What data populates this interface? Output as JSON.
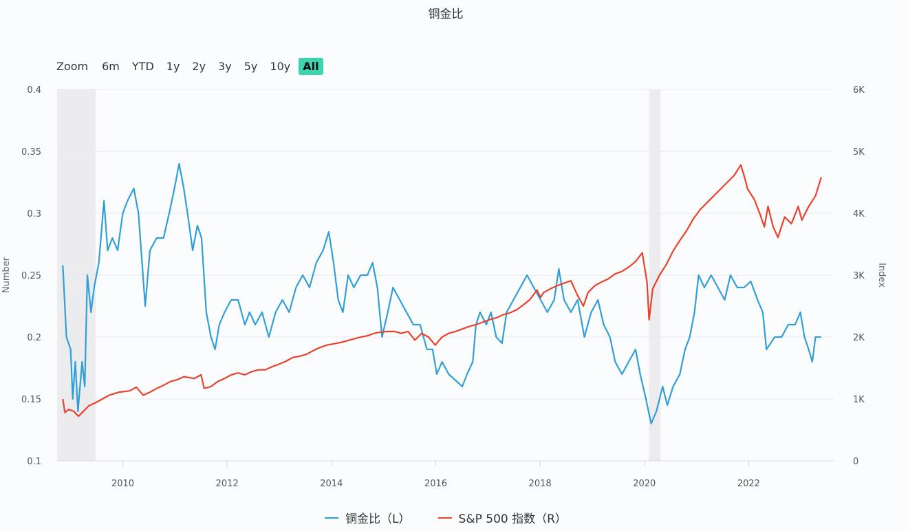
{
  "title": "铜金比",
  "range_selector": {
    "zoom_label": "Zoom",
    "buttons": [
      "6m",
      "YTD",
      "1y",
      "2y",
      "3y",
      "5y",
      "10y",
      "All"
    ],
    "active": "All",
    "active_color": "#3fd4b0"
  },
  "chart_data": {
    "type": "line",
    "title": "铜金比",
    "xlabel": "",
    "x_ticks": [
      "2010",
      "2012",
      "2014",
      "2016",
      "2018",
      "2020",
      "2022"
    ],
    "x_range": [
      2008.74,
      2023.63
    ],
    "y_left": {
      "label": "Number",
      "range": [
        0.1,
        0.4
      ],
      "ticks": [
        "0.1",
        "0.15",
        "0.2",
        "0.25",
        "0.3",
        "0.35",
        "0.4"
      ]
    },
    "y_right": {
      "label": "Index",
      "range": [
        0,
        6000
      ],
      "ticks": [
        "0",
        "1K",
        "2K",
        "3K",
        "4K",
        "5K",
        "6K"
      ]
    },
    "grid": true,
    "legend_position": "bottom",
    "shaded_periods": [
      [
        2008.74,
        2009.48
      ],
      [
        2020.09,
        2020.31
      ]
    ],
    "series": [
      {
        "name": "铜金比（L）",
        "axis": "left",
        "color": "#2f9fd6",
        "points": [
          [
            2008.85,
            0.258
          ],
          [
            2008.92,
            0.2
          ],
          [
            2009.0,
            0.19
          ],
          [
            2009.04,
            0.15
          ],
          [
            2009.09,
            0.18
          ],
          [
            2009.14,
            0.14
          ],
          [
            2009.22,
            0.18
          ],
          [
            2009.27,
            0.16
          ],
          [
            2009.32,
            0.25
          ],
          [
            2009.39,
            0.22
          ],
          [
            2009.45,
            0.24
          ],
          [
            2009.54,
            0.26
          ],
          [
            2009.64,
            0.31
          ],
          [
            2009.71,
            0.27
          ],
          [
            2009.8,
            0.28
          ],
          [
            2009.9,
            0.27
          ],
          [
            2010.0,
            0.3
          ],
          [
            2010.09,
            0.31
          ],
          [
            2010.21,
            0.32
          ],
          [
            2010.3,
            0.3
          ],
          [
            2010.43,
            0.225
          ],
          [
            2010.52,
            0.27
          ],
          [
            2010.65,
            0.28
          ],
          [
            2010.78,
            0.28
          ],
          [
            2010.89,
            0.3
          ],
          [
            2010.99,
            0.32
          ],
          [
            2011.08,
            0.34
          ],
          [
            2011.17,
            0.32
          ],
          [
            2011.24,
            0.3
          ],
          [
            2011.34,
            0.27
          ],
          [
            2011.43,
            0.29
          ],
          [
            2011.51,
            0.28
          ],
          [
            2011.6,
            0.22
          ],
          [
            2011.69,
            0.2
          ],
          [
            2011.77,
            0.19
          ],
          [
            2011.85,
            0.21
          ],
          [
            2011.95,
            0.22
          ],
          [
            2012.08,
            0.23
          ],
          [
            2012.21,
            0.23
          ],
          [
            2012.34,
            0.21
          ],
          [
            2012.43,
            0.22
          ],
          [
            2012.54,
            0.21
          ],
          [
            2012.67,
            0.22
          ],
          [
            2012.8,
            0.2
          ],
          [
            2012.93,
            0.22
          ],
          [
            2013.06,
            0.23
          ],
          [
            2013.19,
            0.22
          ],
          [
            2013.32,
            0.24
          ],
          [
            2013.45,
            0.25
          ],
          [
            2013.58,
            0.24
          ],
          [
            2013.71,
            0.26
          ],
          [
            2013.84,
            0.27
          ],
          [
            2013.95,
            0.285
          ],
          [
            2014.04,
            0.26
          ],
          [
            2014.13,
            0.23
          ],
          [
            2014.22,
            0.22
          ],
          [
            2014.32,
            0.25
          ],
          [
            2014.43,
            0.24
          ],
          [
            2014.56,
            0.25
          ],
          [
            2014.69,
            0.25
          ],
          [
            2014.79,
            0.26
          ],
          [
            2014.88,
            0.24
          ],
          [
            2014.97,
            0.2
          ],
          [
            2015.08,
            0.22
          ],
          [
            2015.18,
            0.24
          ],
          [
            2015.31,
            0.23
          ],
          [
            2015.44,
            0.22
          ],
          [
            2015.57,
            0.21
          ],
          [
            2015.7,
            0.21
          ],
          [
            2015.83,
            0.19
          ],
          [
            2015.94,
            0.19
          ],
          [
            2016.02,
            0.17
          ],
          [
            2016.12,
            0.18
          ],
          [
            2016.25,
            0.17
          ],
          [
            2016.38,
            0.165
          ],
          [
            2016.51,
            0.16
          ],
          [
            2016.6,
            0.17
          ],
          [
            2016.71,
            0.18
          ],
          [
            2016.77,
            0.21
          ],
          [
            2016.85,
            0.22
          ],
          [
            2016.97,
            0.21
          ],
          [
            2017.06,
            0.22
          ],
          [
            2017.16,
            0.2
          ],
          [
            2017.27,
            0.195
          ],
          [
            2017.36,
            0.22
          ],
          [
            2017.49,
            0.23
          ],
          [
            2017.62,
            0.24
          ],
          [
            2017.75,
            0.25
          ],
          [
            2017.88,
            0.24
          ],
          [
            2018.01,
            0.23
          ],
          [
            2018.14,
            0.22
          ],
          [
            2018.27,
            0.23
          ],
          [
            2018.36,
            0.255
          ],
          [
            2018.46,
            0.23
          ],
          [
            2018.59,
            0.22
          ],
          [
            2018.72,
            0.23
          ],
          [
            2018.85,
            0.2
          ],
          [
            2018.98,
            0.22
          ],
          [
            2019.11,
            0.23
          ],
          [
            2019.22,
            0.21
          ],
          [
            2019.34,
            0.2
          ],
          [
            2019.44,
            0.18
          ],
          [
            2019.57,
            0.17
          ],
          [
            2019.7,
            0.18
          ],
          [
            2019.83,
            0.19
          ],
          [
            2019.92,
            0.17
          ],
          [
            2020.03,
            0.15
          ],
          [
            2020.13,
            0.13
          ],
          [
            2020.23,
            0.14
          ],
          [
            2020.35,
            0.16
          ],
          [
            2020.44,
            0.145
          ],
          [
            2020.55,
            0.16
          ],
          [
            2020.68,
            0.17
          ],
          [
            2020.78,
            0.19
          ],
          [
            2020.87,
            0.2
          ],
          [
            2020.96,
            0.22
          ],
          [
            2021.04,
            0.25
          ],
          [
            2021.15,
            0.24
          ],
          [
            2021.28,
            0.25
          ],
          [
            2021.41,
            0.24
          ],
          [
            2021.54,
            0.23
          ],
          [
            2021.65,
            0.25
          ],
          [
            2021.78,
            0.24
          ],
          [
            2021.91,
            0.24
          ],
          [
            2022.04,
            0.245
          ],
          [
            2022.17,
            0.23
          ],
          [
            2022.27,
            0.22
          ],
          [
            2022.34,
            0.19
          ],
          [
            2022.5,
            0.2
          ],
          [
            2022.63,
            0.2
          ],
          [
            2022.76,
            0.21
          ],
          [
            2022.89,
            0.21
          ],
          [
            2022.99,
            0.22
          ],
          [
            2023.07,
            0.2
          ],
          [
            2023.15,
            0.19
          ],
          [
            2023.22,
            0.18
          ],
          [
            2023.28,
            0.2
          ],
          [
            2023.39,
            0.2
          ]
        ]
      },
      {
        "name": "S&P 500 指数（R）",
        "axis": "right",
        "color": "#e8412c",
        "points": [
          [
            2008.85,
            1000
          ],
          [
            2008.89,
            780
          ],
          [
            2008.96,
            830
          ],
          [
            2009.06,
            800
          ],
          [
            2009.15,
            720
          ],
          [
            2009.22,
            780
          ],
          [
            2009.35,
            890
          ],
          [
            2009.48,
            940
          ],
          [
            2009.61,
            1000
          ],
          [
            2009.74,
            1060
          ],
          [
            2009.93,
            1110
          ],
          [
            2010.13,
            1130
          ],
          [
            2010.26,
            1190
          ],
          [
            2010.39,
            1060
          ],
          [
            2010.52,
            1110
          ],
          [
            2010.65,
            1170
          ],
          [
            2010.78,
            1220
          ],
          [
            2010.91,
            1280
          ],
          [
            2011.04,
            1310
          ],
          [
            2011.17,
            1360
          ],
          [
            2011.37,
            1330
          ],
          [
            2011.5,
            1390
          ],
          [
            2011.56,
            1170
          ],
          [
            2011.69,
            1200
          ],
          [
            2011.82,
            1280
          ],
          [
            2011.95,
            1330
          ],
          [
            2012.08,
            1390
          ],
          [
            2012.21,
            1420
          ],
          [
            2012.34,
            1390
          ],
          [
            2012.47,
            1440
          ],
          [
            2012.6,
            1470
          ],
          [
            2012.73,
            1470
          ],
          [
            2012.86,
            1520
          ],
          [
            2012.99,
            1560
          ],
          [
            2013.13,
            1610
          ],
          [
            2013.26,
            1670
          ],
          [
            2013.39,
            1690
          ],
          [
            2013.52,
            1720
          ],
          [
            2013.65,
            1780
          ],
          [
            2013.78,
            1830
          ],
          [
            2013.91,
            1870
          ],
          [
            2014.04,
            1890
          ],
          [
            2014.17,
            1910
          ],
          [
            2014.3,
            1940
          ],
          [
            2014.43,
            1970
          ],
          [
            2014.56,
            2000
          ],
          [
            2014.69,
            2020
          ],
          [
            2014.82,
            2060
          ],
          [
            2014.95,
            2080
          ],
          [
            2015.08,
            2090
          ],
          [
            2015.21,
            2090
          ],
          [
            2015.34,
            2060
          ],
          [
            2015.47,
            2090
          ],
          [
            2015.6,
            1950
          ],
          [
            2015.73,
            2060
          ],
          [
            2015.86,
            2000
          ],
          [
            2015.99,
            1870
          ],
          [
            2016.12,
            2000
          ],
          [
            2016.25,
            2060
          ],
          [
            2016.38,
            2090
          ],
          [
            2016.51,
            2130
          ],
          [
            2016.64,
            2170
          ],
          [
            2016.77,
            2200
          ],
          [
            2016.9,
            2240
          ],
          [
            2017.03,
            2280
          ],
          [
            2017.16,
            2310
          ],
          [
            2017.29,
            2360
          ],
          [
            2017.42,
            2390
          ],
          [
            2017.55,
            2440
          ],
          [
            2017.68,
            2520
          ],
          [
            2017.81,
            2610
          ],
          [
            2017.94,
            2760
          ],
          [
            2018.01,
            2640
          ],
          [
            2018.07,
            2720
          ],
          [
            2018.2,
            2780
          ],
          [
            2018.33,
            2830
          ],
          [
            2018.46,
            2870
          ],
          [
            2018.59,
            2910
          ],
          [
            2018.72,
            2670
          ],
          [
            2018.83,
            2500
          ],
          [
            2018.92,
            2720
          ],
          [
            2019.05,
            2830
          ],
          [
            2019.18,
            2890
          ],
          [
            2019.31,
            2940
          ],
          [
            2019.44,
            3020
          ],
          [
            2019.57,
            3060
          ],
          [
            2019.7,
            3130
          ],
          [
            2019.83,
            3220
          ],
          [
            2019.96,
            3360
          ],
          [
            2020.05,
            2890
          ],
          [
            2020.09,
            2280
          ],
          [
            2020.16,
            2780
          ],
          [
            2020.29,
            3000
          ],
          [
            2020.42,
            3170
          ],
          [
            2020.55,
            3390
          ],
          [
            2020.68,
            3560
          ],
          [
            2020.81,
            3720
          ],
          [
            2020.94,
            3910
          ],
          [
            2021.07,
            4060
          ],
          [
            2021.2,
            4170
          ],
          [
            2021.33,
            4280
          ],
          [
            2021.46,
            4390
          ],
          [
            2021.59,
            4500
          ],
          [
            2021.72,
            4610
          ],
          [
            2021.85,
            4780
          ],
          [
            2021.91,
            4610
          ],
          [
            2021.98,
            4390
          ],
          [
            2022.11,
            4220
          ],
          [
            2022.21,
            4000
          ],
          [
            2022.3,
            3780
          ],
          [
            2022.37,
            4110
          ],
          [
            2022.47,
            3780
          ],
          [
            2022.56,
            3610
          ],
          [
            2022.69,
            3940
          ],
          [
            2022.82,
            3830
          ],
          [
            2022.95,
            4110
          ],
          [
            2023.02,
            3890
          ],
          [
            2023.15,
            4110
          ],
          [
            2023.28,
            4280
          ],
          [
            2023.39,
            4580
          ]
        ]
      }
    ]
  },
  "legend": {
    "items": [
      "铜金比（L）",
      "S&P 500 指数（R）"
    ]
  }
}
